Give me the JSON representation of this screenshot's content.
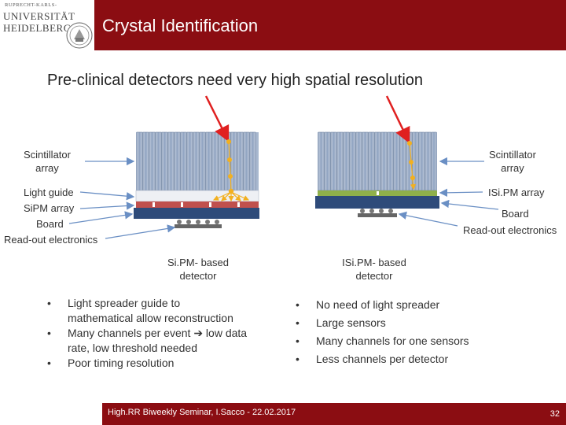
{
  "logo": {
    "line1": "RUPRECHT-KARLS-",
    "line2": "UNIVERSITÄT",
    "line3": "HEIDELBERG"
  },
  "header": {
    "title": "Crystal Identification"
  },
  "subtitle": "Pre-clinical detectors need very high spatial resolution",
  "left_diagram": {
    "labels": {
      "scintillator_1": "Scintillator",
      "scintillator_2": "array",
      "light_guide": "Light guide",
      "sipm_array": "SiPM array",
      "board": "Board",
      "readout": "Read-out electronics"
    },
    "caption_1": "Si.PM- based",
    "caption_2": "detector"
  },
  "right_diagram": {
    "labels": {
      "scintillator_1": "Scintillator",
      "scintillator_2": "array",
      "isipm_array": "ISi.PM array",
      "board": "Board",
      "readout": "Read-out electronics"
    },
    "caption_1": "ISi.PM- based",
    "caption_2": "detector"
  },
  "left_bullets": [
    {
      "lines": [
        "Light spreader guide to",
        "mathematical allow reconstruction"
      ]
    },
    {
      "lines": [
        "Many channels per event ➔ low data",
        "rate, low threshold needed"
      ]
    },
    {
      "lines": [
        "Poor timing resolution"
      ]
    }
  ],
  "right_bullets": [
    "No need of light spreader",
    "Large sensors",
    "Many channels for one sensors",
    "Less channels per detector"
  ],
  "footer": {
    "text": "High.RR Biweekly Seminar, I.Sacco  - 22.02.2017",
    "page": "32"
  },
  "colors": {
    "brand_red": "#8b0d12",
    "crystal": "#a8b8cf",
    "board": "#2e4b7a",
    "sipm": "#c0504d",
    "isipm": "#8fb04a",
    "arrow": "#6a8fc4",
    "gamma": "#e02020",
    "photon": "#f2b020"
  }
}
